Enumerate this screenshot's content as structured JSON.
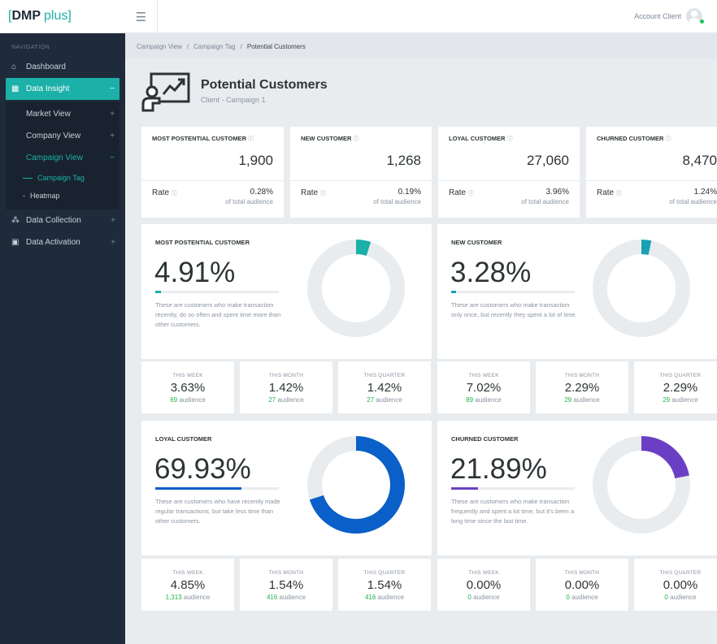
{
  "brand": {
    "open": "[",
    "name": "DMP",
    "suffix": "plus",
    "close": "]"
  },
  "topbar": {
    "menu_icon": "hamburger-icon",
    "account_name": "Account Client"
  },
  "sidebar": {
    "section_label": "NAVIGATION",
    "items": [
      {
        "label": "Dashboard",
        "icon": "home-icon"
      },
      {
        "label": "Data Insight",
        "icon": "chart-icon",
        "toggle": "−"
      },
      {
        "label": "Data Collection",
        "icon": "tree-icon",
        "toggle": "+"
      },
      {
        "label": "Data Activation",
        "icon": "ad-icon",
        "toggle": "+"
      }
    ],
    "sub_items": [
      {
        "label": "Market View",
        "toggle": "+"
      },
      {
        "label": "Company View",
        "toggle": "+"
      },
      {
        "label": "Campaign View",
        "toggle": "−"
      }
    ],
    "subsub_items": [
      {
        "label": "Campaign Tag"
      },
      {
        "label": "Heatmap"
      }
    ]
  },
  "breadcrumb": [
    "Campaign View",
    "Campaign Tag",
    "Potential Customers"
  ],
  "breadcrumb_sep": "/",
  "page": {
    "title": "Potential Customers",
    "subtitle": "Client - Campaign 1"
  },
  "kpis": [
    {
      "title": "MOST POSTENTIAL CUSTOMER",
      "value": "1,900",
      "rate_label": "Rate",
      "rate": "0.28%",
      "rate_sub": "of total audience"
    },
    {
      "title": "NEW CUSTOMER",
      "value": "1,268",
      "rate_label": "Rate",
      "rate": "0.19%",
      "rate_sub": "of total audience"
    },
    {
      "title": "LOYAL CUSTOMER",
      "value": "27,060",
      "rate_label": "Rate",
      "rate": "3.96%",
      "rate_sub": "of total audience"
    },
    {
      "title": "CHURNED CUSTOMER",
      "value": "8,470",
      "rate_label": "Rate",
      "rate": "1.24%",
      "rate_sub": "of total audience"
    }
  ],
  "segments": [
    {
      "title": "MOST POSTENTIAL CUSTOMER",
      "percent": "4.91%",
      "percent_value": 4.91,
      "color": "#1bb0a8",
      "description": "These are customers who make transaction recently, do so often and spent time more than other customers.",
      "periods": [
        {
          "label": "THIS WEEK",
          "value": "3.63%",
          "count": "69",
          "unit": "audience"
        },
        {
          "label": "THIS MONTH",
          "value": "1.42%",
          "count": "27",
          "unit": "audience"
        },
        {
          "label": "THIS QUARTER",
          "value": "1.42%",
          "count": "27",
          "unit": "audience"
        }
      ]
    },
    {
      "title": "NEW CUSTOMER",
      "percent": "3.28%",
      "percent_value": 3.28,
      "color": "#1a9fb5",
      "description": "These are customers who make transaction only once, but recently they spent a lot of time.",
      "periods": [
        {
          "label": "THIS WEEK",
          "value": "7.02%",
          "count": "89",
          "unit": "audience"
        },
        {
          "label": "THIS MONTH",
          "value": "2.29%",
          "count": "29",
          "unit": "audience"
        },
        {
          "label": "THIS QUARTER",
          "value": "2.29%",
          "count": "29",
          "unit": "audience"
        }
      ]
    },
    {
      "title": "LOYAL CUSTOMER",
      "percent": "69.93%",
      "percent_value": 69.93,
      "color": "#0a5fc8",
      "description": "These are customers who have recently made regular transactions, but take less time than other customers.",
      "periods": [
        {
          "label": "THIS WEEK",
          "value": "4.85%",
          "count": "1,313",
          "unit": "audience"
        },
        {
          "label": "THIS MONTH",
          "value": "1.54%",
          "count": "416",
          "unit": "audience"
        },
        {
          "label": "THIS QUARTER",
          "value": "1.54%",
          "count": "416",
          "unit": "audience"
        }
      ]
    },
    {
      "title": "CHURNED CUSTOMER",
      "percent": "21.89%",
      "percent_value": 21.89,
      "color": "#6a3fc4",
      "description": "These are customers who make transaction frequently and spent a lot time, but it's been a long time since the last time.",
      "periods": [
        {
          "label": "THIS WEEK",
          "value": "0.00%",
          "count": "0",
          "unit": "audience"
        },
        {
          "label": "THIS MONTH",
          "value": "0.00%",
          "count": "0",
          "unit": "audience"
        },
        {
          "label": "THIS QUARTER",
          "value": "0.00%",
          "count": "0",
          "unit": "audience"
        }
      ]
    }
  ]
}
